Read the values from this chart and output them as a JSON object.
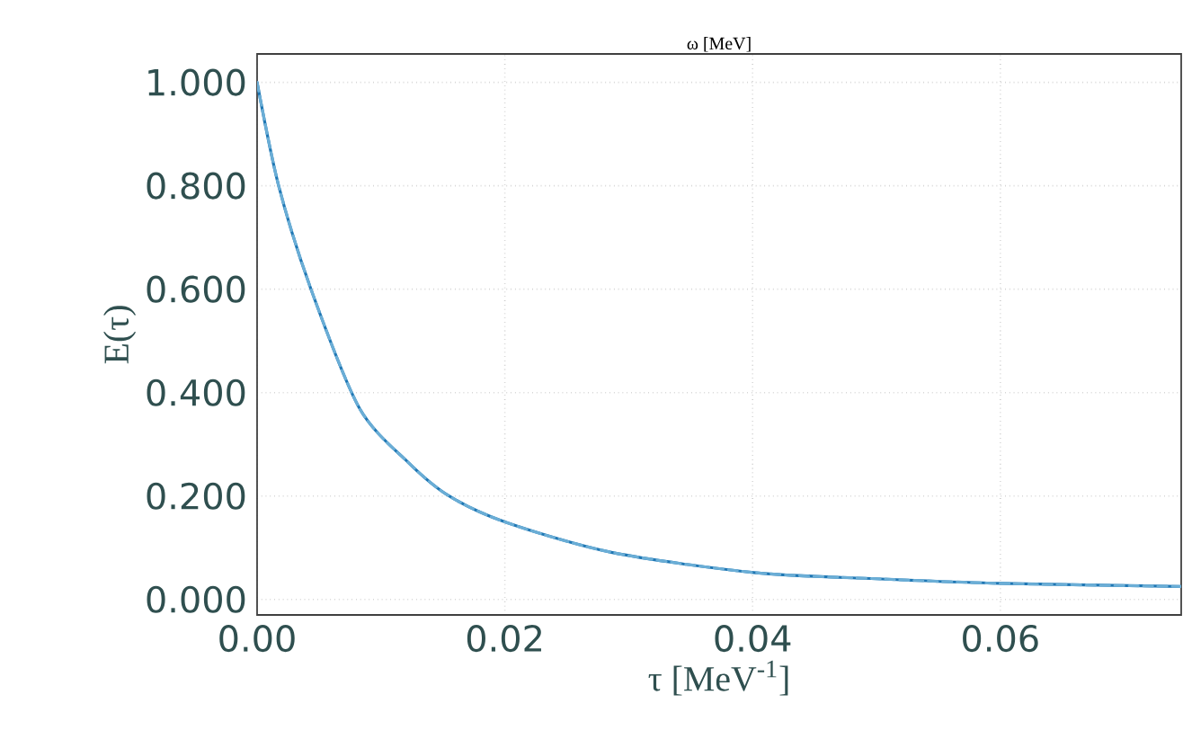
{
  "chart_data": {
    "type": "line",
    "xlabel": "τ [MeV$^{-1}$]",
    "ylabel": "E(τ)",
    "x2label": "ω [MeV]",
    "x": [
      0,
      0.00174,
      0.00435,
      0.00826,
      0.0122,
      0.0155,
      0.0201,
      0.0286,
      0.0401,
      0.05,
      0.06,
      0.0746
    ],
    "series": [
      {
        "color": "#1f77b4",
        "line_style": "solid",
        "values": [
          1,
          0.8,
          0.6,
          0.37,
          0.265,
          0.2,
          0.149,
          0.091,
          0.052,
          0.04,
          0.031,
          0.025
        ]
      },
      {
        "color": "#6baed6",
        "line_style": "dashed",
        "values": [
          1,
          0.8,
          0.6,
          0.37,
          0.265,
          0.2,
          0.149,
          0.091,
          0.052,
          0.04,
          0.031,
          0.025
        ]
      }
    ],
    "xlim": [
      0,
      0.0746
    ],
    "ylim": [
      -0.03,
      1.055
    ],
    "xticks": [
      {
        "value": 0,
        "label": "0.00"
      },
      {
        "value": 0.02,
        "label": "0.02"
      },
      {
        "value": 0.04,
        "label": "0.04"
      },
      {
        "value": 0.06,
        "label": "0.06"
      }
    ],
    "yticks": [
      {
        "value": 0,
        "label": "0.000"
      },
      {
        "value": 0.2,
        "label": "0.200"
      },
      {
        "value": 0.4,
        "label": "0.400"
      },
      {
        "value": 0.6,
        "label": "0.600"
      },
      {
        "value": 0.8,
        "label": "0.800"
      },
      {
        "value": 1,
        "label": "1.000"
      }
    ],
    "grid": true,
    "legend": false,
    "marker": "none"
  }
}
